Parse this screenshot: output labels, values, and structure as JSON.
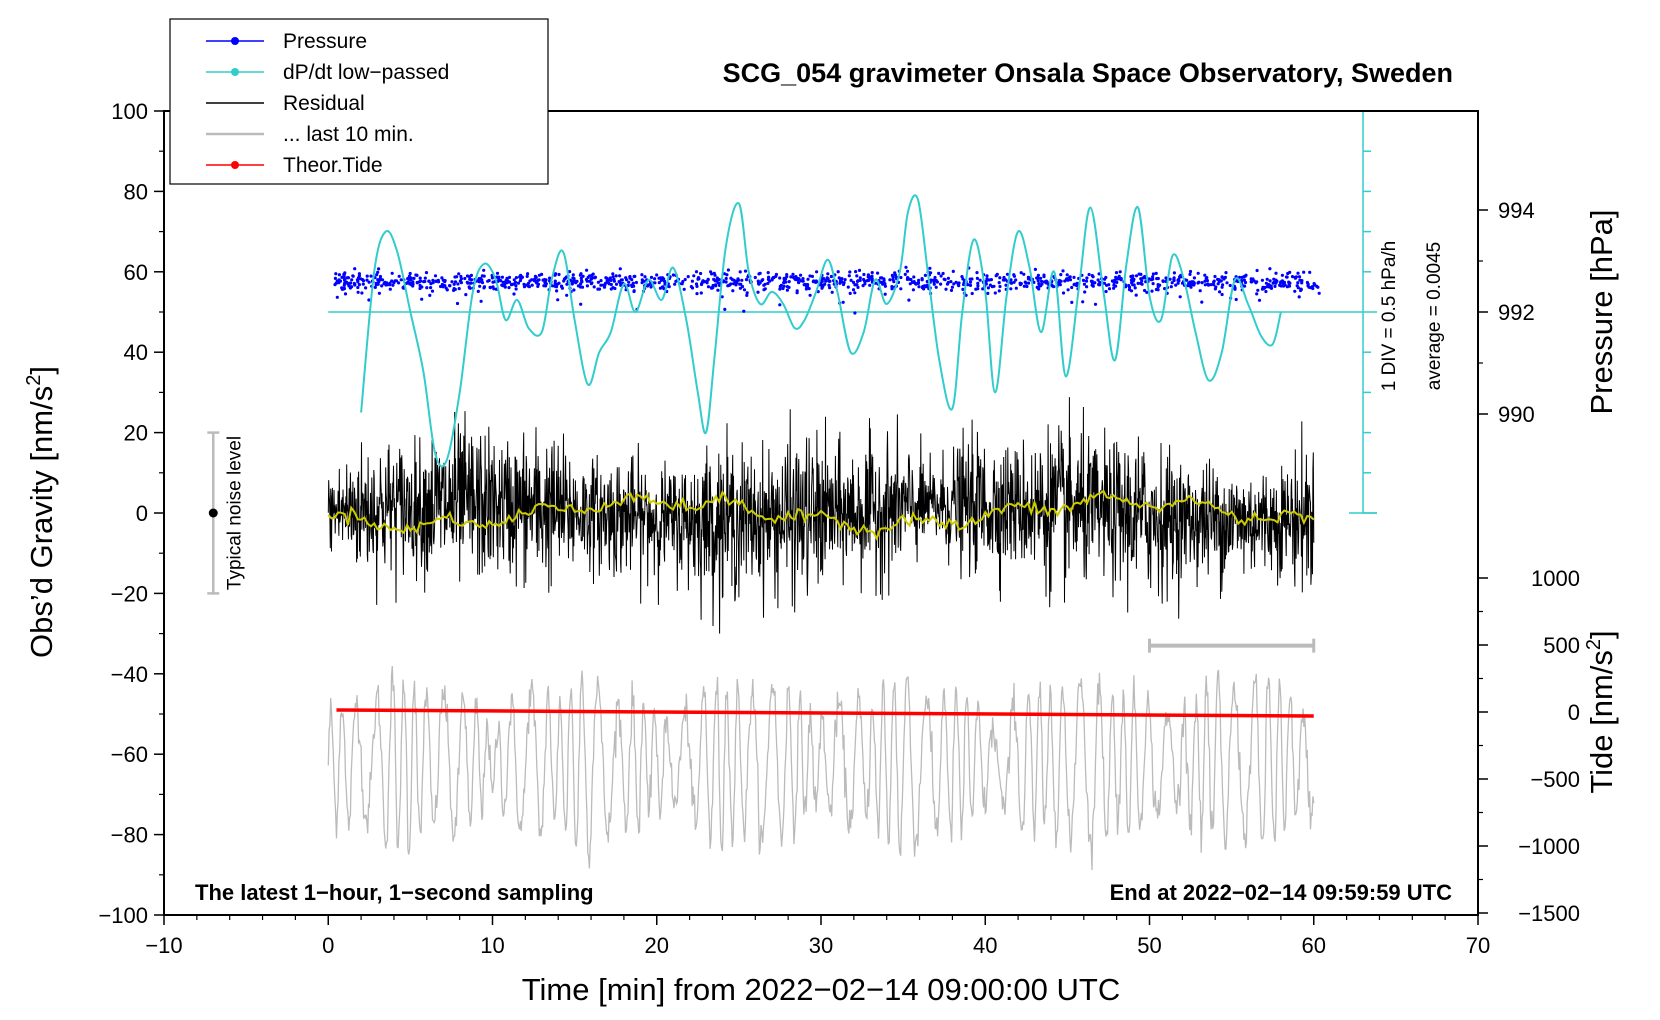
{
  "chart_data": {
    "type": "line",
    "title": "SCG_054 gravimeter Onsala Space Observatory, Sweden",
    "xlabel": "Time [min] from 2022−02−14 09:00:00 UTC",
    "ylabel_left": "Obs’d Gravity [nm/s²]",
    "ylabel_left_main": "Obs’d Gravity [nm/s",
    "ylabel_left_sup": "2",
    "ylabel_left_close": "]",
    "ylabel_right_top": "Pressure [hPa]",
    "ylabel_right_bottom": "Tide [nm/s²]",
    "ylabel_right_bottom_main": "Tide [nm/s",
    "ylabel_right_bottom_sup": "2",
    "ylabel_right_bottom_close": "]",
    "xlim": [
      -10,
      70
    ],
    "ylim": [
      -100,
      100
    ],
    "x_ticks": [
      "−10",
      "0",
      "10",
      "20",
      "30",
      "40",
      "50",
      "60",
      "70"
    ],
    "x_tick_values": [
      -10,
      0,
      10,
      20,
      30,
      40,
      50,
      60,
      70
    ],
    "y_ticks": [
      "100",
      "80",
      "60",
      "40",
      "20",
      "0",
      "−20",
      "−40",
      "−60",
      "−80",
      "−100"
    ],
    "y_tick_values": [
      100,
      80,
      60,
      40,
      20,
      0,
      -20,
      -40,
      -60,
      -80,
      -100
    ],
    "pressure_axis": {
      "ticks": [
        "994",
        "992",
        "990"
      ],
      "tick_values": [
        994,
        992,
        990
      ],
      "note_div": "1 DIV = 0.5 hPa/h",
      "note_avg": "average = 0.0045"
    },
    "tide_axis": {
      "ticks": [
        "1000",
        "500",
        "0",
        "−500",
        "−1000",
        "−1500"
      ],
      "tick_values": [
        1000,
        500,
        0,
        -500,
        -1000,
        -1500
      ]
    },
    "legend": [
      {
        "label": "Pressure",
        "color": "#0000ff",
        "marker": true
      },
      {
        "label": "dP/dt low−passed",
        "color": "#33cccc",
        "marker": true
      },
      {
        "label": "Residual",
        "color": "#000000",
        "marker": false
      },
      {
        "label": "... last 10 min.",
        "color": "#bbbbbb",
        "marker": false
      },
      {
        "label": "Theor.Tide",
        "color": "#ff0000",
        "marker": true
      }
    ],
    "noise_label": "Typical noise level",
    "noise_range": [
      -20,
      20
    ],
    "bottom_left_note": "The latest 1−hour, 1−second sampling",
    "bottom_right_note": "End at 2022−02−14 09:59:59 UTC",
    "last10_bar": [
      50,
      60
    ],
    "series": [
      {
        "name": "dP/dt low-passed",
        "color": "#33cccc",
        "baseline_y": 50,
        "x": [
          2,
          2.8,
          3.5,
          4.2,
          5,
          5.8,
          6.5,
          7.2,
          8,
          8.8,
          9.5,
          10.2,
          10.8,
          11.5,
          12.2,
          13,
          13.6,
          14.3,
          15,
          15.8,
          16.5,
          17.2,
          18,
          18.7,
          19.5,
          20.3,
          21,
          21.8,
          22.5,
          23,
          23.5,
          24.2,
          25,
          25.6,
          26.3,
          27,
          27.7,
          28.4,
          29,
          29.7,
          30.4,
          31,
          31.8,
          32.6,
          33.3,
          34,
          34.8,
          35.3,
          35.9,
          36.5,
          37.2,
          38,
          38.6,
          39.3,
          40,
          40.6,
          41.3,
          42,
          42.7,
          43.4,
          44.2,
          44.9,
          45.7,
          46.4,
          47.2,
          47.9,
          48.6,
          49.3,
          50,
          50.7,
          51.4,
          52.1,
          52.8,
          53.6,
          54.4,
          55.2,
          56,
          56.8,
          57.5,
          58
        ],
        "y": [
          25,
          60,
          70,
          65,
          50,
          35,
          15,
          13,
          30,
          55,
          62,
          58,
          48,
          53,
          46,
          45,
          58,
          65,
          48,
          32,
          40,
          45,
          57,
          50,
          58,
          53,
          61,
          48,
          30,
          20,
          38,
          66,
          77,
          60,
          52,
          55,
          52,
          46,
          48,
          55,
          63,
          55,
          40,
          45,
          58,
          52,
          60,
          75,
          78,
          60,
          38,
          26,
          50,
          68,
          55,
          30,
          54,
          70,
          61,
          45,
          60,
          34,
          56,
          76,
          55,
          38,
          62,
          76,
          54,
          48,
          64,
          58,
          45,
          33,
          40,
          58,
          52,
          44,
          42,
          50
        ]
      },
      {
        "name": "Theor.Tide",
        "color": "#ff0000",
        "x": [
          0.5,
          60
        ],
        "y": [
          -49,
          -50.5
        ]
      }
    ]
  }
}
